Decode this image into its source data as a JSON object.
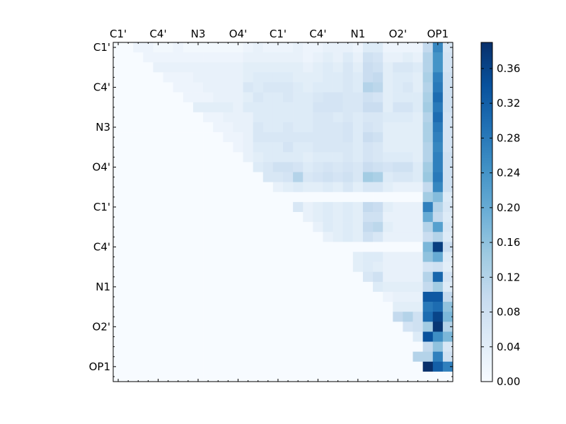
{
  "chart_data": {
    "type": "heatmap",
    "title": "",
    "xlabel": "",
    "ylabel": "",
    "n": 34,
    "x_tick_labels": [
      "C1'",
      "C4'",
      "N3",
      "O4'",
      "C1'",
      "C4'",
      "N1",
      "O2'",
      "OP1"
    ],
    "y_tick_labels": [
      "C1'",
      "C4'",
      "N3",
      "O4'",
      "C1'",
      "C4'",
      "N1",
      "O2'",
      "OP1"
    ],
    "tick_positions": [
      0.5,
      4.5,
      8.5,
      12.5,
      16.5,
      20.5,
      24.5,
      28.5,
      32.5
    ],
    "colorbar": {
      "min": 0.0,
      "max": 0.39,
      "ticks": [
        0.0,
        0.04,
        0.08,
        0.12,
        0.16,
        0.2,
        0.24,
        0.28,
        0.32,
        0.36
      ],
      "tick_labels": [
        "0.00",
        "0.04",
        "0.08",
        "0.12",
        "0.16",
        "0.20",
        "0.24",
        "0.28",
        "0.32",
        "0.36"
      ],
      "colormap": "Blues"
    },
    "colormap_stops": [
      "#f7fbff",
      "#deebf7",
      "#c6dbef",
      "#9ecae1",
      "#6baed6",
      "#4292c6",
      "#2171b5",
      "#08519c",
      "#08306b"
    ],
    "rows": [
      [
        0,
        0,
        0.02,
        0.02,
        0.01,
        0.01,
        0.02,
        0.01,
        0.01,
        0.01,
        0.01,
        0.01,
        0.01,
        0.02,
        0.03,
        0.02,
        0.02,
        0.02,
        0.03,
        0.02,
        0.02,
        0.03,
        0.03,
        0.03,
        0.02,
        0.05,
        0.05,
        0.02,
        0.02,
        0.02,
        0.02,
        0.1,
        0.26,
        0.06
      ],
      [
        0,
        0,
        0,
        0.02,
        0.02,
        0.02,
        0.02,
        0.02,
        0.02,
        0.02,
        0.02,
        0.02,
        0.02,
        0.03,
        0.03,
        0.03,
        0.03,
        0.03,
        0.03,
        0.02,
        0.03,
        0.04,
        0.03,
        0.05,
        0.03,
        0.08,
        0.07,
        0.03,
        0.03,
        0.04,
        0.03,
        0.12,
        0.24,
        0.07
      ],
      [
        0,
        0,
        0,
        0,
        0.03,
        0.03,
        0.03,
        0.03,
        0.03,
        0.03,
        0.03,
        0.03,
        0.03,
        0.04,
        0.04,
        0.04,
        0.04,
        0.04,
        0.04,
        0.03,
        0.04,
        0.05,
        0.04,
        0.06,
        0.04,
        0.09,
        0.08,
        0.04,
        0.06,
        0.06,
        0.05,
        0.12,
        0.24,
        0.07
      ],
      [
        0,
        0,
        0,
        0,
        0,
        0.02,
        0.02,
        0.02,
        0.03,
        0.03,
        0.03,
        0.03,
        0.03,
        0.04,
        0.05,
        0.05,
        0.05,
        0.05,
        0.04,
        0.04,
        0.04,
        0.05,
        0.05,
        0.06,
        0.05,
        0.09,
        0.1,
        0.04,
        0.05,
        0.05,
        0.04,
        0.13,
        0.27,
        0.08
      ],
      [
        0,
        0,
        0,
        0,
        0,
        0,
        0.02,
        0.02,
        0.02,
        0.03,
        0.03,
        0.03,
        0.03,
        0.06,
        0.05,
        0.06,
        0.06,
        0.06,
        0.05,
        0.04,
        0.05,
        0.05,
        0.05,
        0.06,
        0.05,
        0.12,
        0.11,
        0.04,
        0.05,
        0.06,
        0.04,
        0.12,
        0.28,
        0.08
      ],
      [
        0,
        0,
        0,
        0,
        0,
        0,
        0,
        0.02,
        0.02,
        0.02,
        0.03,
        0.03,
        0.03,
        0.04,
        0.06,
        0.05,
        0.05,
        0.06,
        0.05,
        0.05,
        0.06,
        0.07,
        0.07,
        0.06,
        0.06,
        0.08,
        0.07,
        0.04,
        0.05,
        0.05,
        0.05,
        0.13,
        0.3,
        0.08
      ],
      [
        0,
        0,
        0,
        0,
        0,
        0,
        0,
        0,
        0.04,
        0.04,
        0.04,
        0.04,
        0.03,
        0.05,
        0.05,
        0.05,
        0.05,
        0.05,
        0.05,
        0.05,
        0.07,
        0.07,
        0.07,
        0.06,
        0.06,
        0.09,
        0.09,
        0.04,
        0.07,
        0.07,
        0.05,
        0.14,
        0.28,
        0.08
      ],
      [
        0,
        0,
        0,
        0,
        0,
        0,
        0,
        0,
        0,
        0.02,
        0.02,
        0.03,
        0.03,
        0.03,
        0.05,
        0.05,
        0.05,
        0.05,
        0.05,
        0.05,
        0.06,
        0.06,
        0.05,
        0.06,
        0.05,
        0.06,
        0.06,
        0.05,
        0.05,
        0.05,
        0.04,
        0.12,
        0.3,
        0.07
      ],
      [
        0,
        0,
        0,
        0,
        0,
        0,
        0,
        0,
        0,
        0,
        0.02,
        0.02,
        0.03,
        0.03,
        0.06,
        0.05,
        0.05,
        0.06,
        0.05,
        0.05,
        0.06,
        0.06,
        0.06,
        0.07,
        0.05,
        0.07,
        0.06,
        0.04,
        0.04,
        0.04,
        0.04,
        0.13,
        0.28,
        0.07
      ],
      [
        0,
        0,
        0,
        0,
        0,
        0,
        0,
        0,
        0,
        0,
        0,
        0.02,
        0.02,
        0.03,
        0.06,
        0.06,
        0.06,
        0.06,
        0.06,
        0.06,
        0.06,
        0.06,
        0.06,
        0.07,
        0.05,
        0.09,
        0.08,
        0.04,
        0.04,
        0.04,
        0.04,
        0.13,
        0.27,
        0.07
      ],
      [
        0,
        0,
        0,
        0,
        0,
        0,
        0,
        0,
        0,
        0,
        0,
        0,
        0.02,
        0.03,
        0.05,
        0.05,
        0.05,
        0.07,
        0.05,
        0.05,
        0.06,
        0.06,
        0.06,
        0.06,
        0.05,
        0.07,
        0.06,
        0.04,
        0.04,
        0.04,
        0.04,
        0.12,
        0.26,
        0.07
      ],
      [
        0,
        0,
        0,
        0,
        0,
        0,
        0,
        0,
        0,
        0,
        0,
        0,
        0,
        0.03,
        0.04,
        0.05,
        0.05,
        0.05,
        0.05,
        0.04,
        0.05,
        0.05,
        0.05,
        0.06,
        0.05,
        0.07,
        0.06,
        0.05,
        0.05,
        0.05,
        0.04,
        0.12,
        0.27,
        0.08
      ],
      [
        0,
        0,
        0,
        0,
        0,
        0,
        0,
        0,
        0,
        0,
        0,
        0,
        0,
        0,
        0.05,
        0.06,
        0.08,
        0.08,
        0.07,
        0.05,
        0.06,
        0.07,
        0.06,
        0.07,
        0.06,
        0.09,
        0.08,
        0.07,
        0.08,
        0.08,
        0.05,
        0.14,
        0.27,
        0.08
      ],
      [
        0,
        0,
        0,
        0,
        0,
        0,
        0,
        0,
        0,
        0,
        0,
        0,
        0,
        0,
        0,
        0.06,
        0.06,
        0.07,
        0.12,
        0.06,
        0.07,
        0.08,
        0.07,
        0.08,
        0.06,
        0.14,
        0.13,
        0.05,
        0.06,
        0.06,
        0.05,
        0.15,
        0.28,
        0.08
      ],
      [
        0,
        0,
        0,
        0,
        0,
        0,
        0,
        0,
        0,
        0,
        0,
        0,
        0,
        0,
        0,
        0,
        0.03,
        0.04,
        0.05,
        0.04,
        0.04,
        0.05,
        0.04,
        0.06,
        0.04,
        0.06,
        0.06,
        0.04,
        0.03,
        0.03,
        0.03,
        0.1,
        0.26,
        0.08
      ],
      [
        0,
        0,
        0,
        0,
        0,
        0,
        0,
        0,
        0,
        0,
        0,
        0,
        0,
        0,
        0,
        0,
        0,
        0,
        0,
        0,
        0,
        0,
        0,
        0,
        0,
        0,
        0,
        0,
        0,
        0,
        0,
        0.14,
        0.17,
        0.05
      ],
      [
        0,
        0,
        0,
        0,
        0,
        0,
        0,
        0,
        0,
        0,
        0,
        0,
        0,
        0,
        0,
        0,
        0,
        0,
        0.06,
        0.03,
        0.04,
        0.05,
        0.04,
        0.05,
        0.04,
        0.1,
        0.09,
        0.04,
        0.03,
        0.03,
        0.03,
        0.27,
        0.12,
        0.06
      ],
      [
        0,
        0,
        0,
        0,
        0,
        0,
        0,
        0,
        0,
        0,
        0,
        0,
        0,
        0,
        0,
        0,
        0,
        0,
        0,
        0.03,
        0.04,
        0.05,
        0.04,
        0.05,
        0.04,
        0.08,
        0.08,
        0.03,
        0.03,
        0.03,
        0.03,
        0.2,
        0.1,
        0.05
      ],
      [
        0,
        0,
        0,
        0,
        0,
        0,
        0,
        0,
        0,
        0,
        0,
        0,
        0,
        0,
        0,
        0,
        0,
        0,
        0,
        0,
        0.03,
        0.05,
        0.04,
        0.05,
        0.04,
        0.1,
        0.11,
        0.04,
        0.03,
        0.03,
        0.03,
        0.12,
        0.22,
        0.06
      ],
      [
        0,
        0,
        0,
        0,
        0,
        0,
        0,
        0,
        0,
        0,
        0,
        0,
        0,
        0,
        0,
        0,
        0,
        0,
        0,
        0,
        0,
        0.03,
        0.04,
        0.05,
        0.04,
        0.08,
        0.06,
        0.03,
        0.03,
        0.03,
        0.03,
        0.09,
        0.12,
        0.05
      ],
      [
        0,
        0,
        0,
        0,
        0,
        0,
        0,
        0,
        0,
        0,
        0,
        0,
        0,
        0,
        0,
        0,
        0,
        0,
        0,
        0,
        0,
        0,
        0,
        0,
        0,
        0,
        0,
        0,
        0,
        0,
        0,
        0.18,
        0.37,
        0.09
      ],
      [
        0,
        0,
        0,
        0,
        0,
        0,
        0,
        0,
        0,
        0,
        0,
        0,
        0,
        0,
        0,
        0,
        0,
        0,
        0,
        0,
        0,
        0,
        0,
        0,
        0.04,
        0.05,
        0.05,
        0.03,
        0.03,
        0.03,
        0.03,
        0.16,
        0.2,
        0.05
      ],
      [
        0,
        0,
        0,
        0,
        0,
        0,
        0,
        0,
        0,
        0,
        0,
        0,
        0,
        0,
        0,
        0,
        0,
        0,
        0,
        0,
        0,
        0,
        0,
        0,
        0.04,
        0.05,
        0.04,
        0.03,
        0.03,
        0.03,
        0.03,
        0.07,
        0.08,
        0.04
      ],
      [
        0,
        0,
        0,
        0,
        0,
        0,
        0,
        0,
        0,
        0,
        0,
        0,
        0,
        0,
        0,
        0,
        0,
        0,
        0,
        0,
        0,
        0,
        0,
        0,
        0,
        0.06,
        0.08,
        0.03,
        0.03,
        0.03,
        0.03,
        0.12,
        0.31,
        0.07
      ],
      [
        0,
        0,
        0,
        0,
        0,
        0,
        0,
        0,
        0,
        0,
        0,
        0,
        0,
        0,
        0,
        0,
        0,
        0,
        0,
        0,
        0,
        0,
        0,
        0,
        0,
        0,
        0.05,
        0.04,
        0.04,
        0.04,
        0.04,
        0.1,
        0.14,
        0.05
      ],
      [
        0,
        0,
        0,
        0,
        0,
        0,
        0,
        0,
        0,
        0,
        0,
        0,
        0,
        0,
        0,
        0,
        0,
        0,
        0,
        0,
        0,
        0,
        0,
        0,
        0,
        0,
        0,
        0.02,
        0.03,
        0.03,
        0.03,
        0.33,
        0.33,
        0.1
      ],
      [
        0,
        0,
        0,
        0,
        0,
        0,
        0,
        0,
        0,
        0,
        0,
        0,
        0,
        0,
        0,
        0,
        0,
        0,
        0,
        0,
        0,
        0,
        0,
        0,
        0,
        0,
        0,
        0,
        0.04,
        0.04,
        0.04,
        0.28,
        0.3,
        0.16
      ],
      [
        0,
        0,
        0,
        0,
        0,
        0,
        0,
        0,
        0,
        0,
        0,
        0,
        0,
        0,
        0,
        0,
        0,
        0,
        0,
        0,
        0,
        0,
        0,
        0,
        0,
        0,
        0,
        0,
        0.1,
        0.12,
        0.08,
        0.3,
        0.36,
        0.18
      ],
      [
        0,
        0,
        0,
        0,
        0,
        0,
        0,
        0,
        0,
        0,
        0,
        0,
        0,
        0,
        0,
        0,
        0,
        0,
        0,
        0,
        0,
        0,
        0,
        0,
        0,
        0,
        0,
        0,
        0,
        0.07,
        0.08,
        0.14,
        0.38,
        0.12
      ],
      [
        0,
        0,
        0,
        0,
        0,
        0,
        0,
        0,
        0,
        0,
        0,
        0,
        0,
        0,
        0,
        0,
        0,
        0,
        0,
        0,
        0,
        0,
        0,
        0,
        0,
        0,
        0,
        0,
        0,
        0,
        0.05,
        0.34,
        0.25,
        0.18
      ],
      [
        0,
        0,
        0,
        0,
        0,
        0,
        0,
        0,
        0,
        0,
        0,
        0,
        0,
        0,
        0,
        0,
        0,
        0,
        0,
        0,
        0,
        0,
        0,
        0,
        0,
        0,
        0,
        0,
        0,
        0,
        0,
        0.1,
        0.16,
        0.06
      ],
      [
        0,
        0,
        0,
        0,
        0,
        0,
        0,
        0,
        0,
        0,
        0,
        0,
        0,
        0,
        0,
        0,
        0,
        0,
        0,
        0,
        0,
        0,
        0,
        0,
        0,
        0,
        0,
        0,
        0,
        0,
        0,
        0.12,
        0.27,
        0.08
      ],
      [
        0,
        0,
        0,
        0,
        0,
        0,
        0,
        0,
        0,
        0,
        0,
        0,
        0,
        0,
        0,
        0,
        0,
        0,
        0,
        0,
        0,
        0,
        0,
        0,
        0,
        0,
        0,
        0,
        0,
        0,
        0,
        0,
        0,
        0
      ],
      [
        0,
        0,
        0,
        0,
        0,
        0,
        0,
        0,
        0,
        0,
        0,
        0,
        0,
        0,
        0,
        0,
        0,
        0,
        0,
        0,
        0,
        0,
        0,
        0,
        0,
        0,
        0,
        0,
        0,
        0,
        0,
        0,
        0,
        0
      ]
    ],
    "extra_cells": [
      {
        "row": 31,
        "col": 30,
        "value": 0.12
      },
      {
        "row": 32,
        "col": 31,
        "value": 0.39
      },
      {
        "row": 32,
        "col": 32,
        "value": 0.32
      },
      {
        "row": 32,
        "col": 33,
        "value": 0.27
      }
    ],
    "grid": false,
    "legend": "none"
  }
}
